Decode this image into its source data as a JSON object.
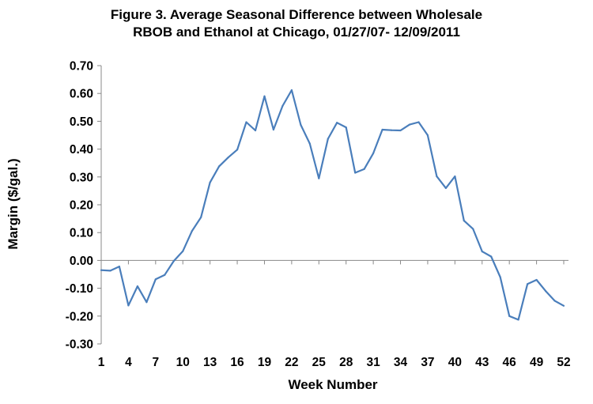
{
  "chart_data": {
    "type": "line",
    "title_line1": "Figure 3. Average Seasonal Difference between Wholesale",
    "title_line2": "RBOB and Ethanol at Chicago, 01/27/07- 12/09/2011",
    "xlabel": "Week Number",
    "ylabel": "Margin ($/gal.)",
    "ylim": [
      -0.3,
      0.7
    ],
    "xlim": [
      1,
      52
    ],
    "y_ticks": [
      "0.70",
      "0.60",
      "0.50",
      "0.40",
      "0.30",
      "0.20",
      "0.10",
      "0.00",
      "-0.10",
      "-0.20",
      "-0.30"
    ],
    "x_ticks": [
      "1",
      "4",
      "7",
      "10",
      "13",
      "16",
      "19",
      "22",
      "25",
      "28",
      "31",
      "34",
      "37",
      "40",
      "43",
      "46",
      "49",
      "52"
    ],
    "grid": false,
    "legend": "none",
    "series_color": "#4a7ebb",
    "x": [
      1,
      2,
      3,
      4,
      5,
      6,
      7,
      8,
      9,
      10,
      11,
      12,
      13,
      14,
      15,
      16,
      17,
      18,
      19,
      20,
      21,
      22,
      23,
      24,
      25,
      26,
      27,
      28,
      29,
      30,
      31,
      32,
      33,
      34,
      35,
      36,
      37,
      38,
      39,
      40,
      41,
      42,
      43,
      44,
      45,
      46,
      47,
      48,
      49,
      50,
      51,
      52
    ],
    "values": [
      -0.035,
      -0.037,
      -0.022,
      -0.162,
      -0.093,
      -0.15,
      -0.068,
      -0.052,
      -0.002,
      0.033,
      0.105,
      0.155,
      0.28,
      0.338,
      0.37,
      0.398,
      0.497,
      0.467,
      0.59,
      0.47,
      0.555,
      0.612,
      0.487,
      0.42,
      0.295,
      0.437,
      0.495,
      0.478,
      0.315,
      0.328,
      0.385,
      0.47,
      0.468,
      0.467,
      0.488,
      0.497,
      0.45,
      0.302,
      0.26,
      0.302,
      0.143,
      0.113,
      0.032,
      0.014,
      -0.06,
      -0.2,
      -0.213,
      -0.085,
      -0.07,
      -0.11,
      -0.145,
      -0.163
    ]
  }
}
